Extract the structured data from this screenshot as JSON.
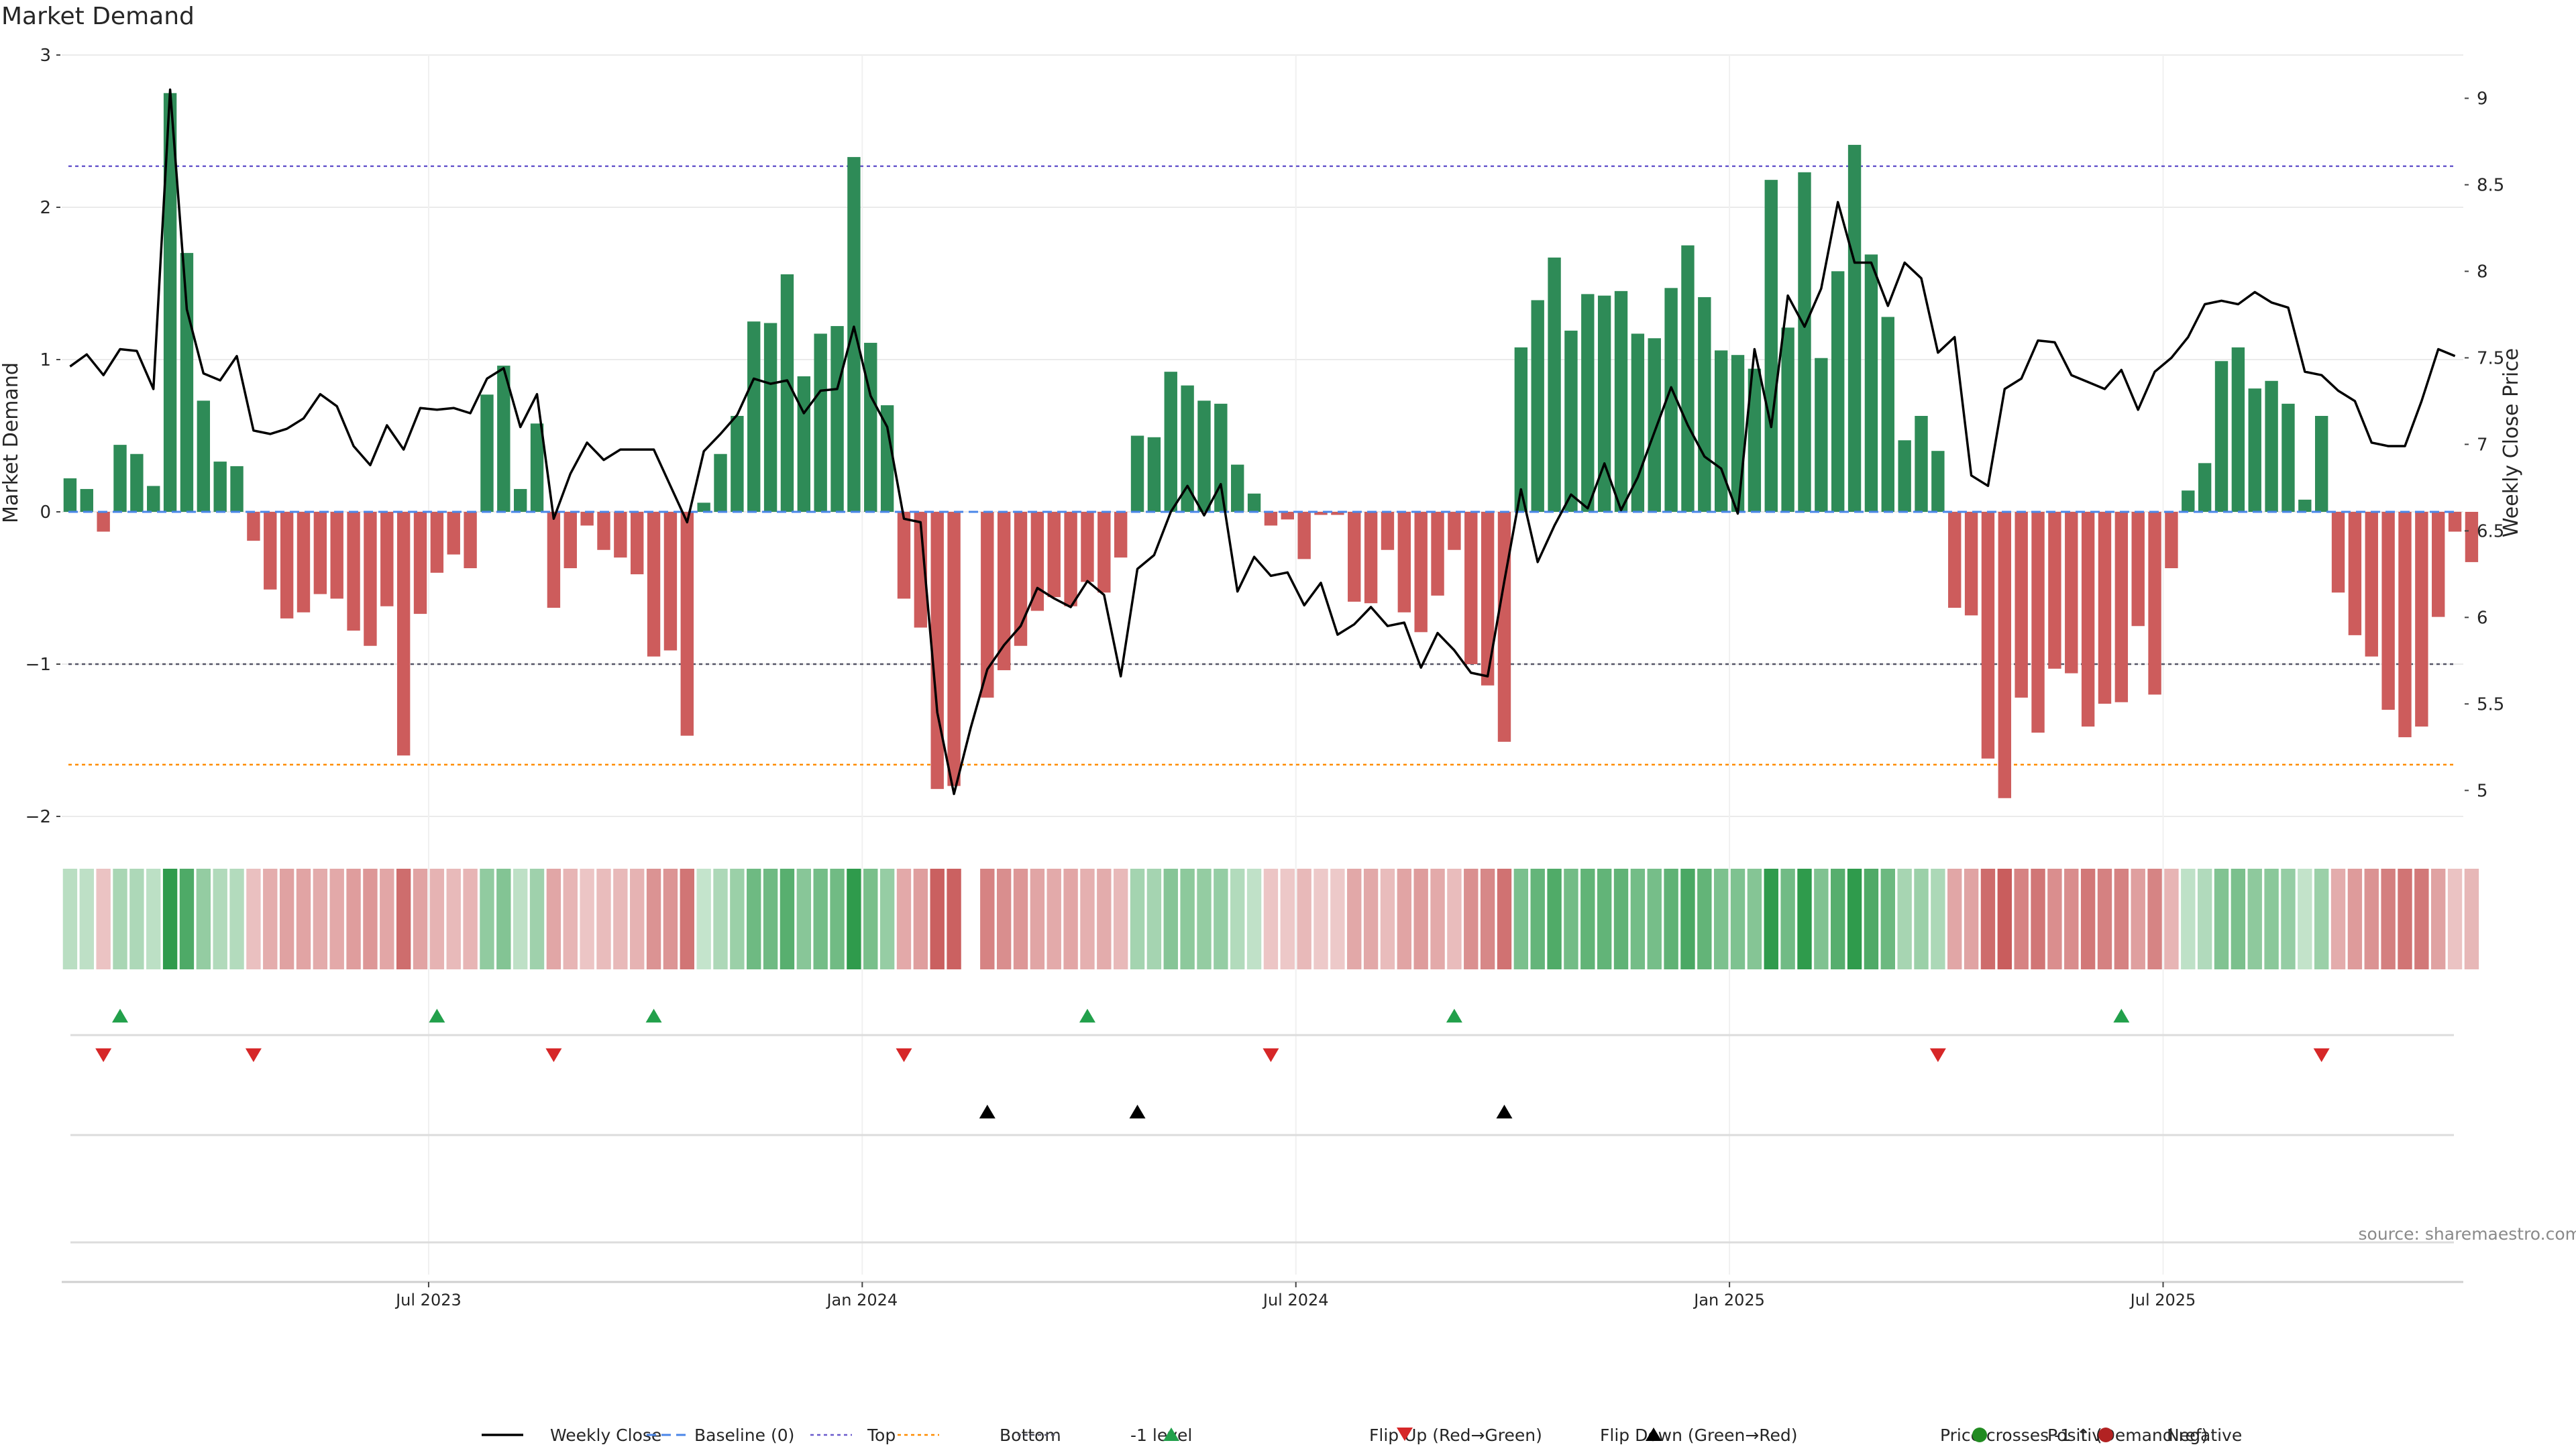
{
  "chart_data": {
    "type": "bar",
    "title": "Market Demand",
    "ylabel_left": "Market Demand",
    "ylabel_right": "Weekly Close Price",
    "ylim_left": [
      -2,
      3
    ],
    "ylim_right": [
      4.85,
      9.25
    ],
    "yticks_left": [
      {
        "v": 3,
        "label": "3"
      },
      {
        "v": 2,
        "label": "2"
      },
      {
        "v": 1,
        "label": "1"
      },
      {
        "v": 0,
        "label": "0"
      },
      {
        "v": -1,
        "label": "−1"
      },
      {
        "v": -2,
        "label": "−2"
      }
    ],
    "yticks_right": [
      {
        "v": 9,
        "label": "9"
      },
      {
        "v": 8.5,
        "label": "8.5"
      },
      {
        "v": 8,
        "label": "8"
      },
      {
        "v": 7.5,
        "label": "7.5"
      },
      {
        "v": 7,
        "label": "7"
      },
      {
        "v": 6.5,
        "label": "6.5"
      },
      {
        "v": 6,
        "label": "6"
      },
      {
        "v": 5.5,
        "label": "5.5"
      },
      {
        "v": 5,
        "label": "5"
      }
    ],
    "x_week_range": [
      -22,
      121
    ],
    "x_ticks": [
      {
        "week": 0,
        "label": "Jul 2023"
      },
      {
        "week": 26,
        "label": "Jan 2024"
      },
      {
        "week": 52,
        "label": "Jul 2024"
      },
      {
        "week": 78,
        "label": "Jan 2025"
      },
      {
        "week": 104,
        "label": "Jul 2025"
      }
    ],
    "levels": {
      "top": 2.27,
      "bottom": -1.66,
      "minus_one": -1,
      "baseline": 0
    },
    "demand": [
      0.22,
      0.15,
      -0.13,
      0.44,
      0.38,
      0.17,
      2.75,
      1.7,
      0.73,
      0.33,
      0.3,
      -0.19,
      -0.51,
      -0.7,
      -0.66,
      -0.54,
      -0.57,
      -0.78,
      -0.88,
      -0.62,
      -1.6,
      -0.67,
      -0.4,
      -0.28,
      -0.37,
      0.77,
      0.96,
      0.15,
      0.58,
      -0.63,
      -0.37,
      -0.09,
      -0.25,
      -0.3,
      -0.41,
      -0.95,
      -0.91,
      -1.47,
      0.06,
      0.38,
      0.63,
      1.25,
      1.24,
      1.56,
      0.89,
      1.17,
      1.22,
      2.33,
      1.11,
      0.7,
      -0.57,
      -0.76,
      -1.82,
      -1.8,
      null,
      -1.22,
      -1.04,
      -0.88,
      -0.65,
      -0.56,
      -0.62,
      -0.46,
      -0.53,
      -0.3,
      0.5,
      0.49,
      0.92,
      0.83,
      0.73,
      0.71,
      0.31,
      0.12,
      -0.09,
      -0.05,
      -0.31,
      -0.02,
      -0.02,
      -0.59,
      -0.6,
      -0.25,
      -0.66,
      -0.79,
      -0.55,
      -0.25,
      -1.0,
      -1.14,
      -1.51,
      1.08,
      1.39,
      1.67,
      1.19,
      1.43,
      1.42,
      1.45,
      1.17,
      1.14,
      1.47,
      1.75,
      1.41,
      1.06,
      1.03,
      0.94,
      2.18,
      1.21,
      2.23,
      1.01,
      1.58,
      2.41,
      1.69,
      1.28,
      0.47,
      0.63,
      0.4,
      -0.63,
      -0.68,
      -1.62,
      -1.88,
      -1.22,
      -1.45,
      -1.03,
      -1.06,
      -1.41,
      -1.26,
      -1.25,
      -0.75,
      -1.2,
      -0.37,
      0.14,
      0.32,
      0.99,
      1.08,
      0.81,
      0.86,
      0.71,
      0.08,
      0.63,
      -0.53,
      -0.81,
      -0.95,
      -1.3,
      -1.48,
      -1.41,
      -0.69,
      -0.13,
      -0.33
    ],
    "close": [
      7.45,
      7.52,
      7.4,
      7.55,
      7.54,
      7.32,
      9.05,
      7.78,
      7.41,
      7.37,
      7.51,
      7.08,
      7.06,
      7.09,
      7.15,
      7.29,
      7.22,
      6.99,
      6.88,
      7.11,
      6.97,
      7.21,
      7.2,
      7.21,
      7.18,
      7.38,
      7.44,
      7.1,
      7.29,
      6.57,
      6.83,
      7.01,
      6.91,
      6.97,
      6.97,
      6.97,
      6.76,
      6.55,
      6.96,
      7.06,
      7.17,
      7.38,
      7.35,
      7.37,
      7.18,
      7.31,
      7.32,
      7.68,
      7.28,
      7.1,
      6.57,
      6.55,
      5.45,
      4.98,
      5.36,
      5.7,
      5.84,
      5.95,
      6.17,
      6.11,
      6.06,
      6.21,
      6.13,
      5.66,
      6.28,
      6.36,
      6.61,
      6.76,
      6.59,
      6.77,
      6.15,
      6.35,
      6.24,
      6.26,
      6.07,
      6.2,
      5.9,
      5.96,
      6.06,
      5.95,
      5.97,
      5.71,
      5.91,
      5.81,
      5.68,
      5.66,
      6.21,
      6.74,
      6.32,
      6.53,
      6.71,
      6.63,
      6.89,
      6.62,
      6.81,
      7.07,
      7.33,
      7.11,
      6.93,
      6.86,
      6.6,
      7.55,
      7.1,
      7.86,
      7.68,
      7.9,
      8.4,
      8.05,
      8.05,
      7.8,
      8.05,
      7.96,
      7.53,
      7.62,
      6.82,
      6.76,
      7.32,
      7.38,
      7.6,
      7.59,
      7.4,
      7.36,
      7.32,
      7.43,
      7.2,
      7.42,
      7.5,
      7.62,
      7.81,
      7.83,
      7.81,
      7.88,
      7.82,
      7.79,
      7.42,
      7.4,
      7.31,
      7.25,
      7.01,
      6.99,
      6.99,
      7.25,
      7.55,
      7.51
    ],
    "heat_gaps": [
      54
    ],
    "flip_up_weeks": [
      -19,
      0,
      13,
      39,
      61,
      101
    ],
    "flip_down_weeks": [
      -20,
      -11,
      7,
      28,
      50,
      90,
      113
    ],
    "price_cross_weeks": [
      33,
      42,
      64
    ],
    "source": "source: sharemaestro.com",
    "legend": [
      {
        "key": "weekly_close",
        "label": "Weekly Close"
      },
      {
        "key": "baseline",
        "label": "Baseline (0)"
      },
      {
        "key": "top",
        "label": "Top"
      },
      {
        "key": "bottom",
        "label": "Bottom"
      },
      {
        "key": "minus_one",
        "label": "-1 level"
      },
      {
        "key": "flip_up",
        "label": "Flip Up (Red→Green)"
      },
      {
        "key": "flip_down",
        "label": "Flip Down (Green→Red)"
      },
      {
        "key": "price_cross",
        "label": "Price crosses -1 ↑ (Demand ref)"
      },
      {
        "key": "positive",
        "label": "Positive"
      },
      {
        "key": "negative",
        "label": "Negative"
      }
    ]
  },
  "colors": {
    "positive": "#2e8b57",
    "negative": "#cd5c5c",
    "price_line": "#000000",
    "baseline": "#4a86e8",
    "top": "#6a5acd",
    "bottom": "#ff8c00",
    "minus_one": "#555566",
    "flip_up": "#22a04b",
    "flip_down": "#d62728",
    "positive_dot": "#228b22",
    "negative_dot": "#b22222"
  }
}
